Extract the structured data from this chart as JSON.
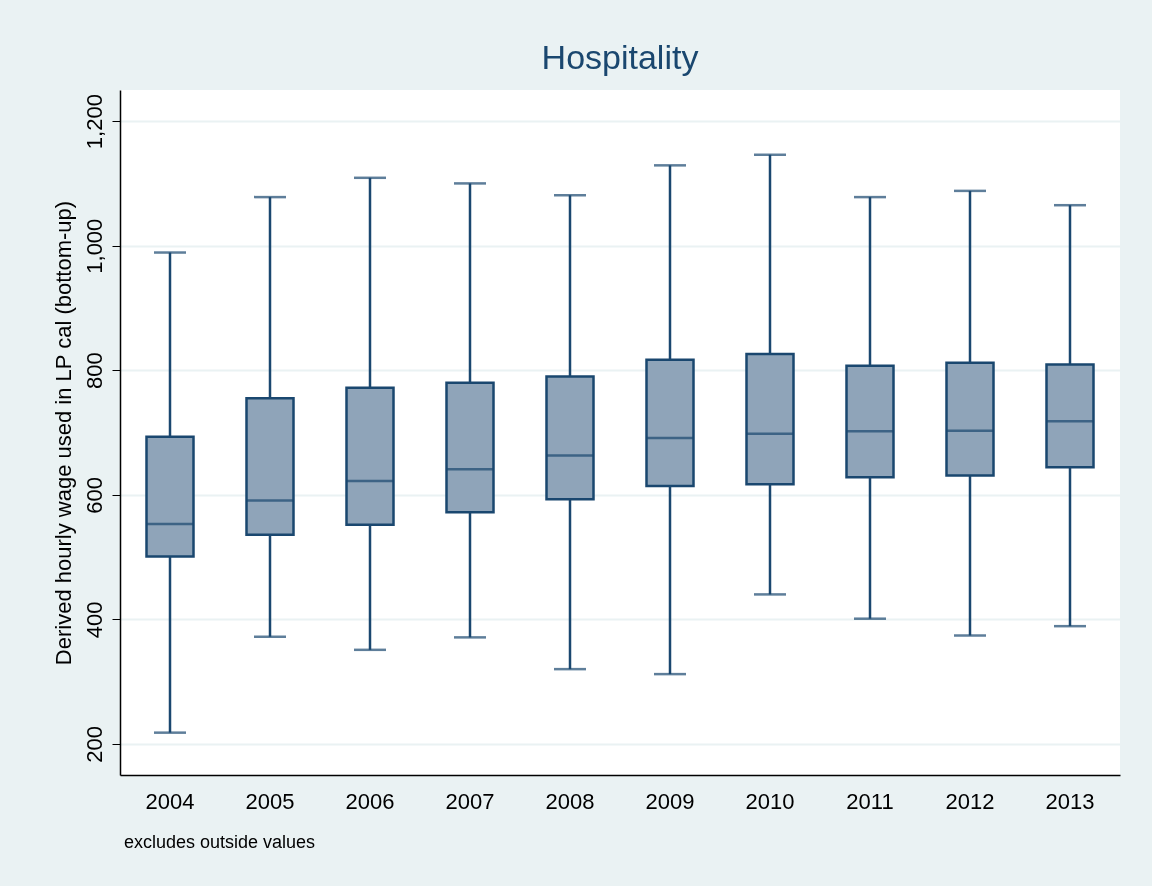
{
  "chart_data": {
    "type": "box",
    "title": "Hospitality",
    "ylabel": "Derived hourly wage used in LP cal (bottom-up)",
    "annotations": [
      "excludes outside values"
    ],
    "categories": [
      "2004",
      "2005",
      "2006",
      "2007",
      "2008",
      "2009",
      "2010",
      "2011",
      "2012",
      "2013"
    ],
    "color": "#8fa4b9",
    "boxes": [
      {
        "low": 218,
        "q1": 501,
        "median": 553,
        "q3": 693,
        "high": 989
      },
      {
        "low": 372,
        "q1": 536,
        "median": 591,
        "q3": 755,
        "high": 1078
      },
      {
        "low": 351,
        "q1": 552,
        "median": 622,
        "q3": 772,
        "high": 1109
      },
      {
        "low": 371,
        "q1": 572,
        "median": 641,
        "q3": 780,
        "high": 1100
      },
      {
        "low": 320,
        "q1": 593,
        "median": 663,
        "q3": 790,
        "high": 1081
      },
      {
        "low": 312,
        "q1": 614,
        "median": 691,
        "q3": 817,
        "high": 1129
      },
      {
        "low": 440,
        "q1": 617,
        "median": 698,
        "q3": 826,
        "high": 1146
      },
      {
        "low": 401,
        "q1": 628,
        "median": 702,
        "q3": 807,
        "high": 1078
      },
      {
        "low": 374,
        "q1": 631,
        "median": 703,
        "q3": 812,
        "high": 1088
      },
      {
        "low": 389,
        "q1": 644,
        "median": 718,
        "q3": 809,
        "high": 1065
      }
    ],
    "ylim": [
      150,
      1250
    ],
    "yticks": [
      200,
      400,
      600,
      800,
      {
        "value": 1000,
        "label": "1,000"
      },
      {
        "value": 1200,
        "label": "1,200"
      }
    ],
    "grid": "y"
  }
}
